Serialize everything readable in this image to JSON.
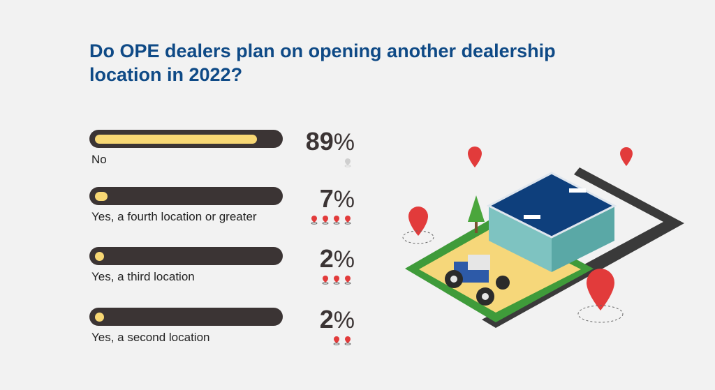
{
  "title": "Do OPE dealers plan on opening another dealership location in 2022?",
  "colors": {
    "title": "#0f4a86",
    "bar_track": "#3b3434",
    "bar_fill": "#f7d774",
    "pin": "#e23b3b",
    "pin_faint": "#cfcfcf"
  },
  "chart_data": {
    "type": "bar",
    "orientation": "horizontal",
    "title": "Do OPE dealers plan on opening another dealership location in 2022?",
    "categories": [
      "No",
      "Yes, a fourth location or greater",
      "Yes, a third location",
      "Yes, a second location"
    ],
    "values": [
      89,
      7,
      2,
      2
    ],
    "value_labels": [
      "89",
      "7",
      "2",
      "2"
    ],
    "unit": "%",
    "pin_icons": [
      1,
      4,
      3,
      2
    ],
    "xlim": [
      0,
      100
    ],
    "grid": false
  }
}
